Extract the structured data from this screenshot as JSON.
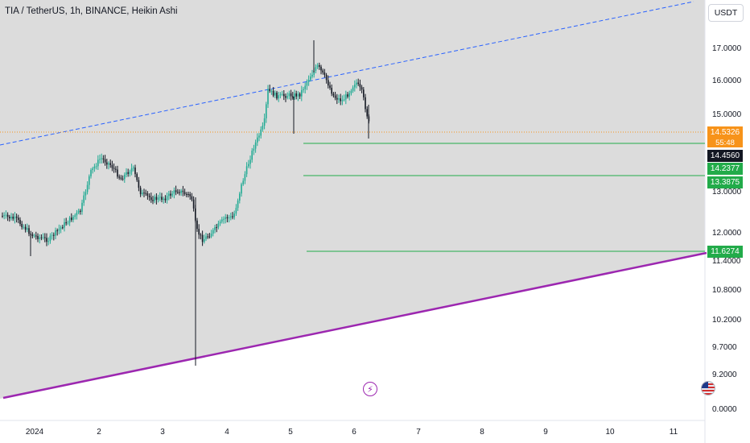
{
  "header": {
    "symbol_title": "TIA / TetherUS, 1h, BINANCE, Heikin Ashi"
  },
  "currency_button": {
    "label": "USDT"
  },
  "price_axis": {
    "ticks": [
      "17.0000",
      "16.0000",
      "15.0000",
      "13.0000",
      "12.0000",
      "11.4000",
      "10.8000",
      "10.2000",
      "9.7000",
      "9.2000",
      "0.0000"
    ]
  },
  "time_axis": {
    "ticks": [
      "2024",
      "2",
      "3",
      "4",
      "5",
      "6",
      "7",
      "8",
      "9",
      "10",
      "11"
    ]
  },
  "price_tags": {
    "last": {
      "value": "14.5326",
      "countdown": "55:48",
      "color": "#f7931a"
    },
    "crosshair": {
      "value": "14.4560",
      "color": "#131722"
    },
    "level_1": {
      "value": "14.2377",
      "color": "#22ab4a"
    },
    "level_2": {
      "value": "13.3875",
      "color": "#22ab4a"
    },
    "level_3": {
      "value": "11.6274",
      "color": "#22ab4a"
    }
  },
  "icons": {
    "bolt": "lightning-bolt-icon",
    "flag": "us-flag-icon"
  },
  "colors": {
    "up": "#22ab94",
    "down": "#131722",
    "trendline_solid": "#9c27b0",
    "trendline_dashed": "#2962ff",
    "zone_fill": "#d9d9d9"
  }
}
